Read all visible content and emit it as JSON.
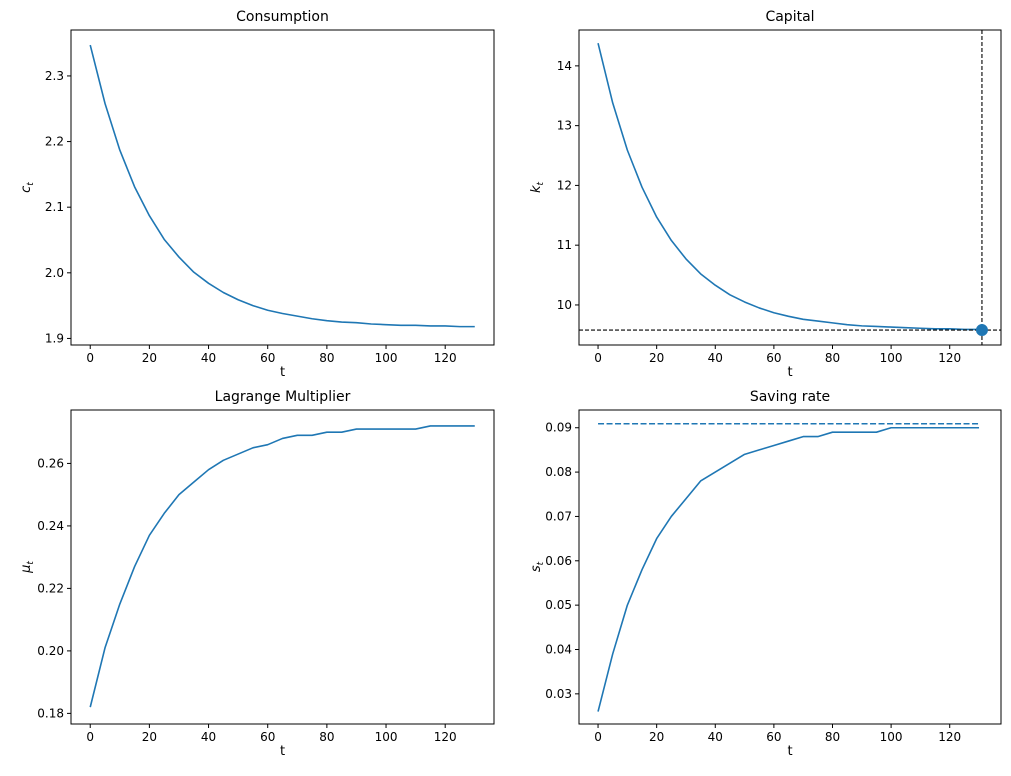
{
  "chart_data": [
    {
      "type": "line",
      "title": "Consumption",
      "xlabel": "t",
      "ylabel": {
        "base": "c",
        "sub": "t"
      },
      "xlim": [
        -6.5,
        136.5
      ],
      "ylim": [
        1.89,
        2.37
      ],
      "xticks": [
        0,
        20,
        40,
        60,
        80,
        100,
        120
      ],
      "yticks": [
        1.9,
        2.0,
        2.1,
        2.2,
        2.3
      ],
      "ytick_labels": [
        "1.9",
        "2.0",
        "2.1",
        "2.2",
        "2.3"
      ],
      "grid": false,
      "color": "#1f77b4",
      "x": [
        0,
        5,
        10,
        15,
        20,
        25,
        30,
        35,
        40,
        45,
        50,
        55,
        60,
        65,
        70,
        75,
        80,
        85,
        90,
        95,
        100,
        105,
        110,
        115,
        120,
        125,
        130
      ],
      "series": [
        {
          "values": [
            2.347,
            2.258,
            2.187,
            2.131,
            2.087,
            2.051,
            2.024,
            2.001,
            1.984,
            1.97,
            1.959,
            1.95,
            1.943,
            1.938,
            1.934,
            1.93,
            1.927,
            1.925,
            1.924,
            1.922,
            1.921,
            1.92,
            1.92,
            1.919,
            1.919,
            1.918,
            1.918
          ]
        }
      ]
    },
    {
      "type": "line",
      "title": "Capital",
      "xlabel": "t",
      "ylabel": {
        "base": "k",
        "sub": "t"
      },
      "xlim": [
        -6.5,
        137.5
      ],
      "ylim": [
        9.33,
        14.6
      ],
      "xticks": [
        0,
        20,
        40,
        60,
        80,
        100,
        120
      ],
      "yticks": [
        10,
        11,
        12,
        13,
        14
      ],
      "ytick_labels": [
        "10",
        "11",
        "12",
        "13",
        "14"
      ],
      "grid": false,
      "color": "#1f77b4",
      "x": [
        0,
        5,
        10,
        15,
        20,
        25,
        30,
        35,
        40,
        45,
        50,
        55,
        60,
        65,
        70,
        75,
        80,
        85,
        90,
        95,
        100,
        105,
        110,
        115,
        120,
        125,
        130
      ],
      "series": [
        {
          "values": [
            14.38,
            13.38,
            12.59,
            11.97,
            11.47,
            11.08,
            10.77,
            10.52,
            10.33,
            10.17,
            10.05,
            9.95,
            9.87,
            9.81,
            9.76,
            9.73,
            9.7,
            9.67,
            9.65,
            9.64,
            9.63,
            9.62,
            9.61,
            9.6,
            9.6,
            9.59,
            9.59
          ]
        }
      ],
      "marker": {
        "x": 131,
        "y": 9.58
      },
      "hline": {
        "y": 9.58,
        "style": "dashed",
        "color": "#000000"
      },
      "vline": {
        "x": 131,
        "style": "dashed",
        "color": "#000000"
      }
    },
    {
      "type": "line",
      "title": "Lagrange Multiplier",
      "xlabel": "t",
      "ylabel": {
        "base": "μ",
        "sub": "t"
      },
      "xlim": [
        -6.5,
        136.5
      ],
      "ylim": [
        0.1766,
        0.2771
      ],
      "xticks": [
        0,
        20,
        40,
        60,
        80,
        100,
        120
      ],
      "yticks": [
        0.18,
        0.2,
        0.22,
        0.24,
        0.26
      ],
      "ytick_labels": [
        "0.18",
        "0.20",
        "0.22",
        "0.24",
        "0.26"
      ],
      "grid": false,
      "color": "#1f77b4",
      "x": [
        0,
        5,
        10,
        15,
        20,
        25,
        30,
        35,
        40,
        45,
        50,
        55,
        60,
        65,
        70,
        75,
        80,
        85,
        90,
        95,
        100,
        105,
        110,
        115,
        120,
        125,
        130
      ],
      "series": [
        {
          "values": [
            0.182,
            0.201,
            0.215,
            0.227,
            0.237,
            0.244,
            0.25,
            0.254,
            0.258,
            0.261,
            0.263,
            0.265,
            0.266,
            0.268,
            0.269,
            0.269,
            0.27,
            0.27,
            0.271,
            0.271,
            0.271,
            0.271,
            0.271,
            0.272,
            0.272,
            0.272,
            0.272
          ]
        }
      ]
    },
    {
      "type": "line",
      "title": "Saving rate",
      "xlabel": "t",
      "ylabel": {
        "base": "s",
        "sub": "t"
      },
      "xlim": [
        -6.5,
        137.5
      ],
      "ylim": [
        0.0232,
        0.094
      ],
      "xticks": [
        0,
        20,
        40,
        60,
        80,
        100,
        120
      ],
      "yticks": [
        0.03,
        0.04,
        0.05,
        0.06,
        0.07,
        0.08,
        0.09
      ],
      "ytick_labels": [
        "0.03",
        "0.04",
        "0.05",
        "0.06",
        "0.07",
        "0.08",
        "0.09"
      ],
      "grid": false,
      "color": "#1f77b4",
      "x": [
        0,
        5,
        10,
        15,
        20,
        25,
        30,
        35,
        40,
        45,
        50,
        55,
        60,
        65,
        70,
        75,
        80,
        85,
        90,
        95,
        100,
        105,
        110,
        115,
        120,
        125,
        130
      ],
      "series": [
        {
          "values": [
            0.026,
            0.039,
            0.05,
            0.058,
            0.065,
            0.07,
            0.074,
            0.078,
            0.08,
            0.082,
            0.084,
            0.085,
            0.086,
            0.087,
            0.088,
            0.088,
            0.089,
            0.089,
            0.089,
            0.089,
            0.09,
            0.09,
            0.09,
            0.09,
            0.09,
            0.09,
            0.09
          ]
        }
      ],
      "steady_state_line": {
        "x": [
          0,
          130
        ],
        "y": 0.0909,
        "style": "dashed",
        "color": "#1f77b4"
      }
    }
  ]
}
